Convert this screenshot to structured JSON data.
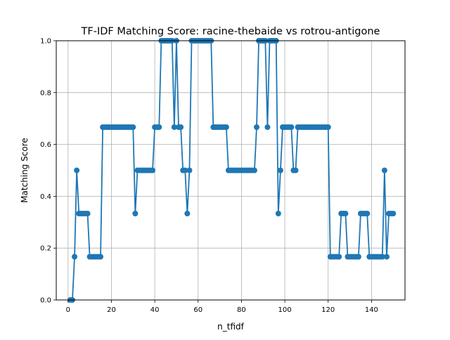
{
  "chart_data": {
    "type": "line",
    "title": "TF-IDF Matching Score: racine-thebaide vs rotrou-antigone",
    "xlabel": "n_tfidf",
    "ylabel": "Matching Score",
    "xlim": [
      -5.45,
      155.45
    ],
    "ylim": [
      0,
      1
    ],
    "xticks": [
      0,
      20,
      40,
      60,
      80,
      100,
      120,
      140
    ],
    "yticks": [
      0.0,
      0.2,
      0.4,
      0.6,
      0.8,
      1.0
    ],
    "xtick_labels": [
      "0",
      "20",
      "40",
      "60",
      "80",
      "100",
      "120",
      "140"
    ],
    "ytick_labels": [
      "0.0",
      "0.2",
      "0.4",
      "0.6",
      "0.8",
      "1.0"
    ],
    "grid": true,
    "marker": "circle",
    "color": "#1f77b4",
    "series": [
      {
        "x": [
          1,
          2,
          3,
          4,
          5,
          6,
          7,
          8,
          9,
          10,
          11,
          12,
          13,
          14,
          15,
          16,
          17,
          18,
          19,
          20,
          21,
          22,
          23,
          24,
          25,
          26,
          27,
          28,
          29,
          30,
          31,
          32,
          33,
          34,
          35,
          36,
          37,
          38,
          39,
          40,
          41,
          42,
          43,
          44,
          45,
          46,
          47,
          48,
          49,
          50,
          51,
          52,
          53,
          54,
          55,
          56,
          57,
          58,
          59,
          60,
          61,
          62,
          63,
          64,
          65,
          66,
          67,
          68,
          69,
          70,
          71,
          72,
          73,
          74,
          75,
          76,
          77,
          78,
          79,
          80,
          81,
          82,
          83,
          84,
          85,
          86,
          87,
          88,
          89,
          90,
          91,
          92,
          93,
          94,
          95,
          96,
          97,
          98,
          99,
          100,
          101,
          102,
          103,
          104,
          105,
          106,
          107,
          108,
          109,
          110,
          111,
          112,
          113,
          114,
          115,
          116,
          117,
          118,
          119,
          120,
          121,
          122,
          123,
          124,
          125,
          126,
          127,
          128,
          129,
          130,
          131,
          132,
          133,
          134,
          135,
          136,
          137,
          138,
          139,
          140,
          141,
          142,
          143,
          144,
          145,
          146,
          147,
          148,
          149,
          150
        ],
        "y": [
          0,
          0,
          0.1667,
          0.5,
          0.3333,
          0.3333,
          0.3333,
          0.3333,
          0.3333,
          0.1667,
          0.1667,
          0.1667,
          0.1667,
          0.1667,
          0.1667,
          0.6667,
          0.6667,
          0.6667,
          0.6667,
          0.6667,
          0.6667,
          0.6667,
          0.6667,
          0.6667,
          0.6667,
          0.6667,
          0.6667,
          0.6667,
          0.6667,
          0.6667,
          0.3333,
          0.5,
          0.5,
          0.5,
          0.5,
          0.5,
          0.5,
          0.5,
          0.5,
          0.6667,
          0.6667,
          0.6667,
          1,
          1,
          1,
          1,
          1,
          1,
          0.6667,
          1,
          0.6667,
          0.6667,
          0.5,
          0.5,
          0.3333,
          0.5,
          1,
          1,
          1,
          1,
          1,
          1,
          1,
          1,
          1,
          1,
          0.6667,
          0.6667,
          0.6667,
          0.6667,
          0.6667,
          0.6667,
          0.6667,
          0.5,
          0.5,
          0.5,
          0.5,
          0.5,
          0.5,
          0.5,
          0.5,
          0.5,
          0.5,
          0.5,
          0.5,
          0.5,
          0.6667,
          1,
          1,
          1,
          1,
          0.6667,
          1,
          1,
          1,
          1,
          0.3333,
          0.5,
          0.6667,
          0.6667,
          0.6667,
          0.6667,
          0.6667,
          0.5,
          0.5,
          0.6667,
          0.6667,
          0.6667,
          0.6667,
          0.6667,
          0.6667,
          0.6667,
          0.6667,
          0.6667,
          0.6667,
          0.6667,
          0.6667,
          0.6667,
          0.6667,
          0.6667,
          0.1667,
          0.1667,
          0.1667,
          0.1667,
          0.1667,
          0.3333,
          0.3333,
          0.3333,
          0.1667,
          0.1667,
          0.1667,
          0.1667,
          0.1667,
          0.1667,
          0.3333,
          0.3333,
          0.3333,
          0.3333,
          0.1667,
          0.1667,
          0.1667,
          0.1667,
          0.1667,
          0.1667,
          0.1667,
          0.5,
          0.1667,
          0.3333,
          0.3333,
          0.3333
        ]
      }
    ]
  }
}
